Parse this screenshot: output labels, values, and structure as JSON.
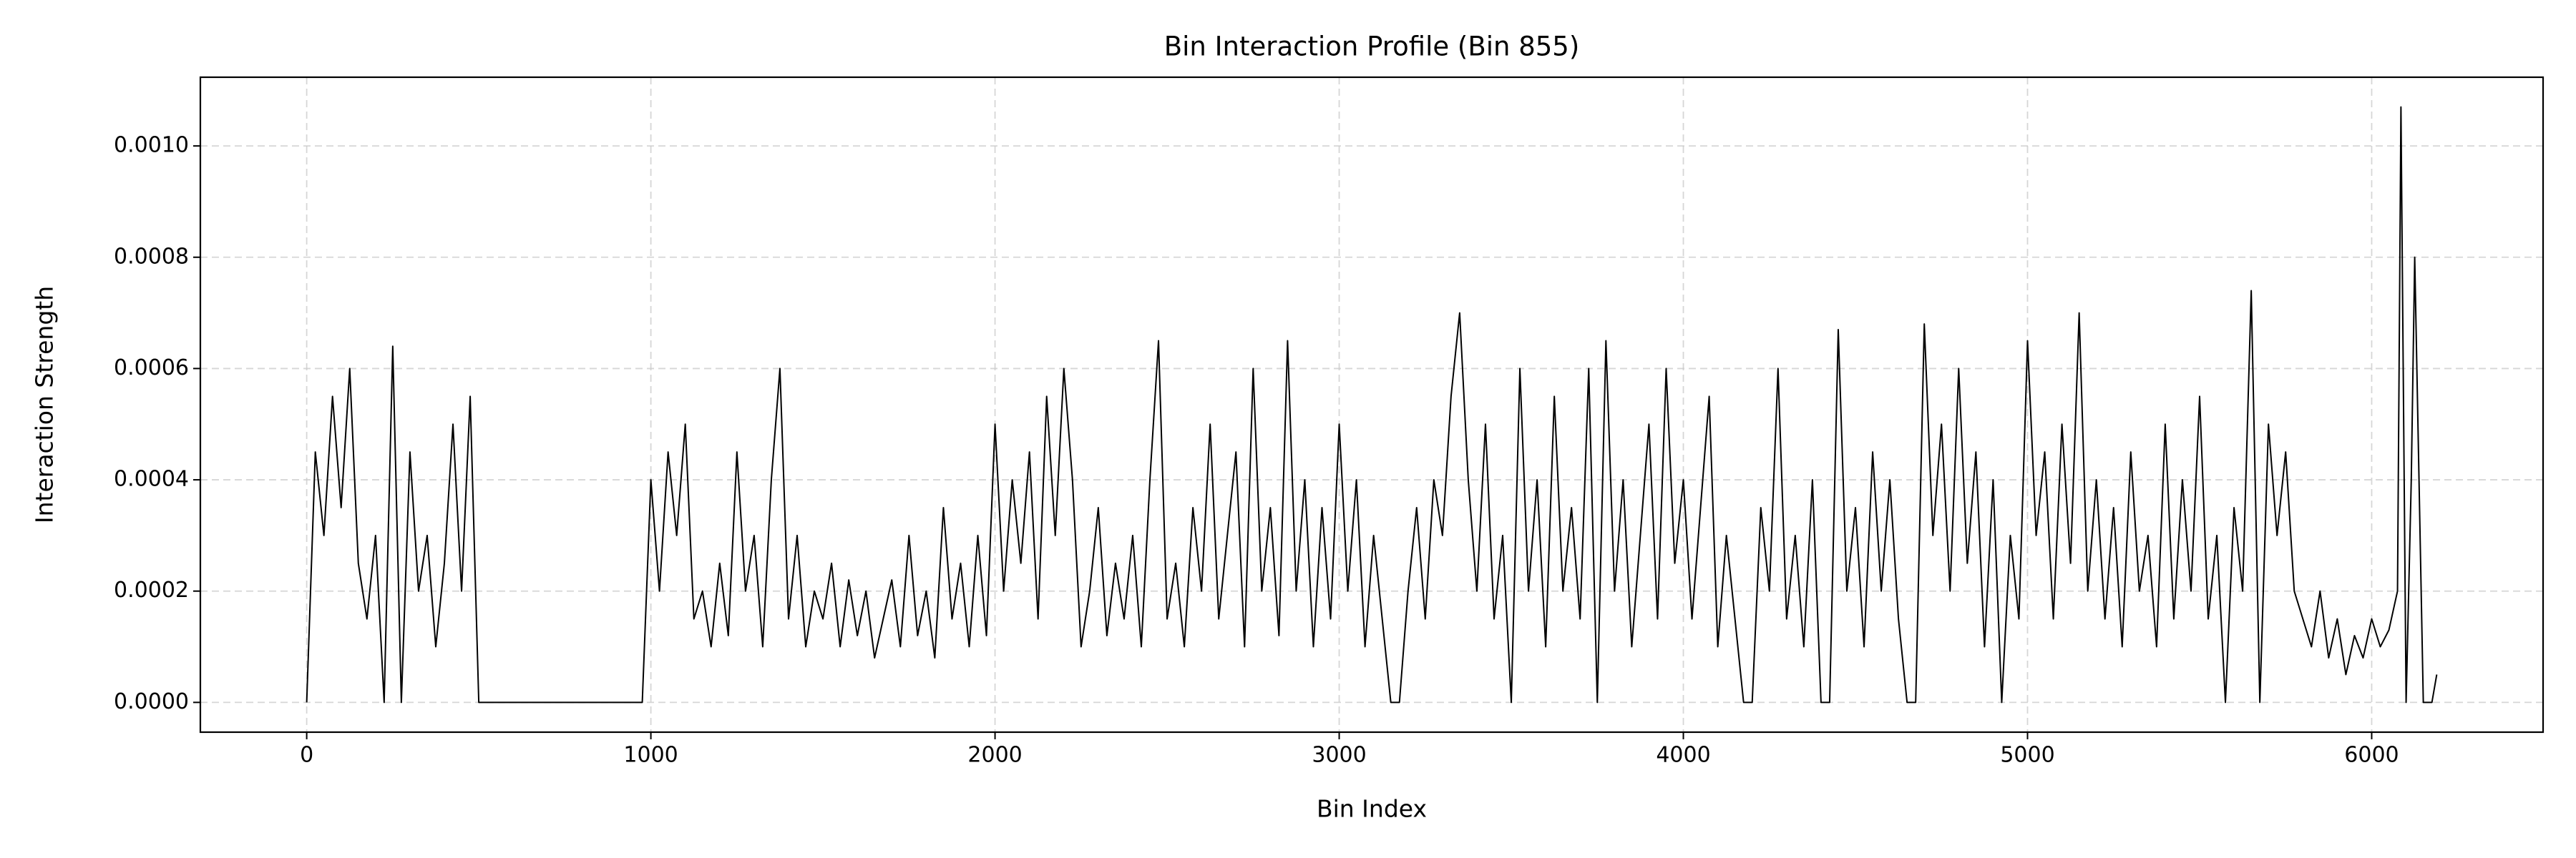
{
  "chart_data": {
    "type": "line",
    "title": "Bin Interaction Profile (Bin 855)",
    "xlabel": "Bin Index",
    "ylabel": "Interaction Strength",
    "x": [
      0,
      25,
      50,
      75,
      100,
      125,
      150,
      175,
      200,
      225,
      250,
      275,
      300,
      325,
      350,
      375,
      400,
      425,
      450,
      475,
      500,
      525,
      550,
      575,
      600,
      625,
      650,
      675,
      700,
      725,
      750,
      775,
      800,
      825,
      850,
      875,
      900,
      925,
      950,
      975,
      1000,
      1025,
      1050,
      1075,
      1100,
      1125,
      1150,
      1175,
      1200,
      1225,
      1250,
      1275,
      1300,
      1325,
      1350,
      1375,
      1400,
      1425,
      1450,
      1475,
      1500,
      1525,
      1550,
      1575,
      1600,
      1625,
      1650,
      1675,
      1700,
      1725,
      1750,
      1775,
      1800,
      1825,
      1850,
      1875,
      1900,
      1925,
      1950,
      1975,
      2000,
      2025,
      2050,
      2075,
      2100,
      2125,
      2150,
      2175,
      2200,
      2225,
      2250,
      2275,
      2300,
      2325,
      2350,
      2375,
      2400,
      2425,
      2450,
      2475,
      2500,
      2525,
      2550,
      2575,
      2600,
      2625,
      2650,
      2675,
      2700,
      2725,
      2750,
      2775,
      2800,
      2825,
      2850,
      2875,
      2900,
      2925,
      2950,
      2975,
      3000,
      3025,
      3050,
      3075,
      3100,
      3125,
      3150,
      3175,
      3200,
      3225,
      3250,
      3275,
      3300,
      3325,
      3350,
      3375,
      3400,
      3425,
      3450,
      3475,
      3500,
      3525,
      3550,
      3575,
      3600,
      3625,
      3650,
      3675,
      3700,
      3725,
      3750,
      3775,
      3800,
      3825,
      3850,
      3875,
      3900,
      3925,
      3950,
      3975,
      4000,
      4025,
      4050,
      4075,
      4100,
      4125,
      4150,
      4175,
      4200,
      4225,
      4250,
      4275,
      4300,
      4325,
      4350,
      4375,
      4400,
      4425,
      4450,
      4475,
      4500,
      4525,
      4550,
      4575,
      4600,
      4625,
      4650,
      4675,
      4700,
      4725,
      4750,
      4775,
      4800,
      4825,
      4850,
      4875,
      4900,
      4925,
      4950,
      4975,
      5000,
      5025,
      5050,
      5075,
      5100,
      5125,
      5150,
      5175,
      5200,
      5225,
      5250,
      5275,
      5300,
      5325,
      5350,
      5375,
      5400,
      5425,
      5450,
      5475,
      5500,
      5525,
      5550,
      5575,
      5600,
      5625,
      5650,
      5675,
      5700,
      5725,
      5750,
      5775,
      5800,
      5825,
      5850,
      5875,
      5900,
      5925,
      5950,
      5975,
      6000,
      6025,
      6050,
      6075,
      6085,
      6100,
      6115,
      6125,
      6150,
      6175,
      6189
    ],
    "series": [
      {
        "color": "#000000",
        "values": [
          0,
          0.00045,
          0.0003,
          0.00055,
          0.00035,
          0.0006,
          0.00025,
          0.00015,
          0.0003,
          0,
          0.00064,
          0,
          0.00045,
          0.0002,
          0.0003,
          0.0001,
          0.00025,
          0.0005,
          0.0002,
          0.00055,
          0,
          0,
          0,
          0,
          0,
          0,
          0,
          0,
          0,
          0,
          0,
          0,
          0,
          0,
          0,
          0,
          0,
          0,
          0,
          0,
          0.0004,
          0.0002,
          0.00045,
          0.0003,
          0.0005,
          0.00015,
          0.0002,
          0.0001,
          0.00025,
          0.00012,
          0.00045,
          0.0002,
          0.0003,
          0.0001,
          0.0004,
          0.0006,
          0.00015,
          0.0003,
          0.0001,
          0.0002,
          0.00015,
          0.00025,
          0.0001,
          0.00022,
          0.00012,
          0.0002,
          8e-05,
          0.00015,
          0.00022,
          0.0001,
          0.0003,
          0.00012,
          0.0002,
          8e-05,
          0.00035,
          0.00015,
          0.00025,
          0.0001,
          0.0003,
          0.00012,
          0.0005,
          0.0002,
          0.0004,
          0.00025,
          0.00045,
          0.00015,
          0.00055,
          0.0003,
          0.0006,
          0.0004,
          0.0001,
          0.0002,
          0.00035,
          0.00012,
          0.00025,
          0.00015,
          0.0003,
          0.0001,
          0.0004,
          0.00065,
          0.00015,
          0.00025,
          0.0001,
          0.00035,
          0.0002,
          0.0005,
          0.00015,
          0.0003,
          0.00045,
          0.0001,
          0.0006,
          0.0002,
          0.00035,
          0.00012,
          0.00065,
          0.0002,
          0.0004,
          0.0001,
          0.00035,
          0.00015,
          0.0005,
          0.0002,
          0.0004,
          0.0001,
          0.0003,
          0.00015,
          0,
          0,
          0.0002,
          0.00035,
          0.00015,
          0.0004,
          0.0003,
          0.00055,
          0.0007,
          0.0004,
          0.0002,
          0.0005,
          0.00015,
          0.0003,
          0,
          0.0006,
          0.0002,
          0.0004,
          0.0001,
          0.00055,
          0.0002,
          0.00035,
          0.00015,
          0.0006,
          0,
          0.00065,
          0.0002,
          0.0004,
          0.0001,
          0.0003,
          0.0005,
          0.00015,
          0.0006,
          0.00025,
          0.0004,
          0.00015,
          0.00035,
          0.00055,
          0.0001,
          0.0003,
          0.00015,
          0,
          0,
          0.00035,
          0.0002,
          0.0006,
          0.00015,
          0.0003,
          0.0001,
          0.0004,
          0,
          0,
          0.00067,
          0.0002,
          0.00035,
          0.0001,
          0.00045,
          0.0002,
          0.0004,
          0.00015,
          0,
          0,
          0.00068,
          0.0003,
          0.0005,
          0.0002,
          0.0006,
          0.00025,
          0.00045,
          0.0001,
          0.0004,
          0,
          0.0003,
          0.00015,
          0.00065,
          0.0003,
          0.00045,
          0.00015,
          0.0005,
          0.00025,
          0.0007,
          0.0002,
          0.0004,
          0.00015,
          0.00035,
          0.0001,
          0.00045,
          0.0002,
          0.0003,
          0.0001,
          0.0005,
          0.00015,
          0.0004,
          0.0002,
          0.00055,
          0.00015,
          0.0003,
          0,
          0.00035,
          0.0002,
          0.00074,
          0,
          0.0005,
          0.0003,
          0.00045,
          0.0002,
          0.00015,
          0.0001,
          0.0002,
          8e-05,
          0.00015,
          5e-05,
          0.00012,
          8e-05,
          0.00015,
          0.0001,
          0.00013,
          0.0002,
          0.00107,
          0,
          0.0004,
          0.0008,
          0,
          0,
          5e-05
        ]
      }
    ],
    "xlim": [
      -309,
      6498
    ],
    "xticks": [
      0,
      1000,
      2000,
      3000,
      4000,
      5000,
      6000
    ],
    "ylim": [
      -5.35e-05,
      0.0011235
    ],
    "yticks": [
      {
        "value": 0,
        "label": "0.0000"
      },
      {
        "value": 0.0002,
        "label": "0.0002"
      },
      {
        "value": 0.0004,
        "label": "0.0004"
      },
      {
        "value": 0.0006,
        "label": "0.0006"
      },
      {
        "value": 0.0008,
        "label": "0.0008"
      },
      {
        "value": 0.001,
        "label": "0.0010"
      }
    ],
    "grid": true
  }
}
